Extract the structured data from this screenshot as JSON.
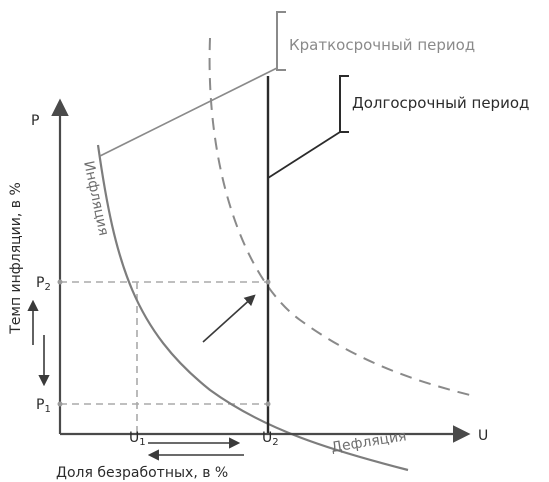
{
  "axes": {
    "y_letter": "P",
    "x_letter": "U",
    "y_title": "Темп инфляции, в %",
    "x_title": "Доля безработных, в %"
  },
  "ticks": {
    "p1": "P",
    "p1_sub": "1",
    "p2": "P",
    "p2_sub": "2",
    "u1": "U",
    "u1_sub": "1",
    "u2": "U",
    "u2_sub": "2"
  },
  "labels": {
    "short_run": "Краткосрочный период",
    "long_run": "Долгосрочный период",
    "inflation": "Инфляция",
    "deflation": "Дефляция"
  },
  "colors": {
    "axis": "#4a4a4a",
    "curve": "#7d7d7d",
    "short_run_bracket": "#8a8a8a",
    "long_run_line": "#2b2b2b",
    "guide_dash": "#aaaaaa"
  }
}
